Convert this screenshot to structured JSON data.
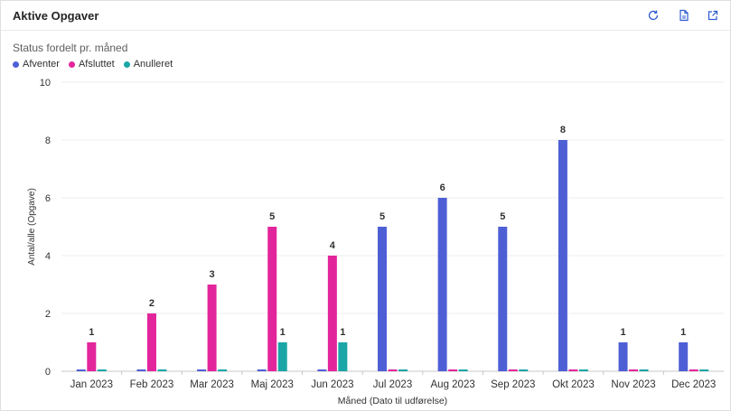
{
  "header": {
    "title": "Aktive Opgaver",
    "icons": [
      "refresh-icon",
      "export-icon",
      "expand-icon"
    ]
  },
  "colors": {
    "afventer": "#4e5fd6",
    "afsluttet": "#e3259b",
    "anulleret": "#1aa6a6",
    "grid": "#ececec",
    "axis_text": "#323130"
  },
  "chart_data": {
    "type": "bar",
    "title": "Status fordelt pr. måned",
    "xlabel": "Måned (Dato til udførelse)",
    "ylabel": "Antal/alle (Opgave)",
    "ylim": [
      0,
      10
    ],
    "yticks": [
      0,
      2,
      4,
      6,
      8,
      10
    ],
    "grid": true,
    "legend_position": "top-left",
    "categories": [
      "Jan 2023",
      "Feb 2023",
      "Mar 2023",
      "Maj 2023",
      "Jun 2023",
      "Jul 2023",
      "Aug 2023",
      "Sep 2023",
      "Okt 2023",
      "Nov 2023",
      "Dec 2023"
    ],
    "series": [
      {
        "name": "Afventer",
        "color": "#4e5fd6",
        "values": [
          0,
          0,
          0,
          0,
          0,
          5,
          6,
          5,
          8,
          1,
          1
        ]
      },
      {
        "name": "Afsluttet",
        "color": "#e3259b",
        "values": [
          1,
          2,
          3,
          5,
          4,
          0,
          0,
          0,
          0,
          0,
          0
        ]
      },
      {
        "name": "Anulleret",
        "color": "#1aa6a6",
        "values": [
          0,
          0,
          0,
          1,
          1,
          0,
          0,
          0,
          0,
          0,
          0
        ]
      }
    ]
  }
}
